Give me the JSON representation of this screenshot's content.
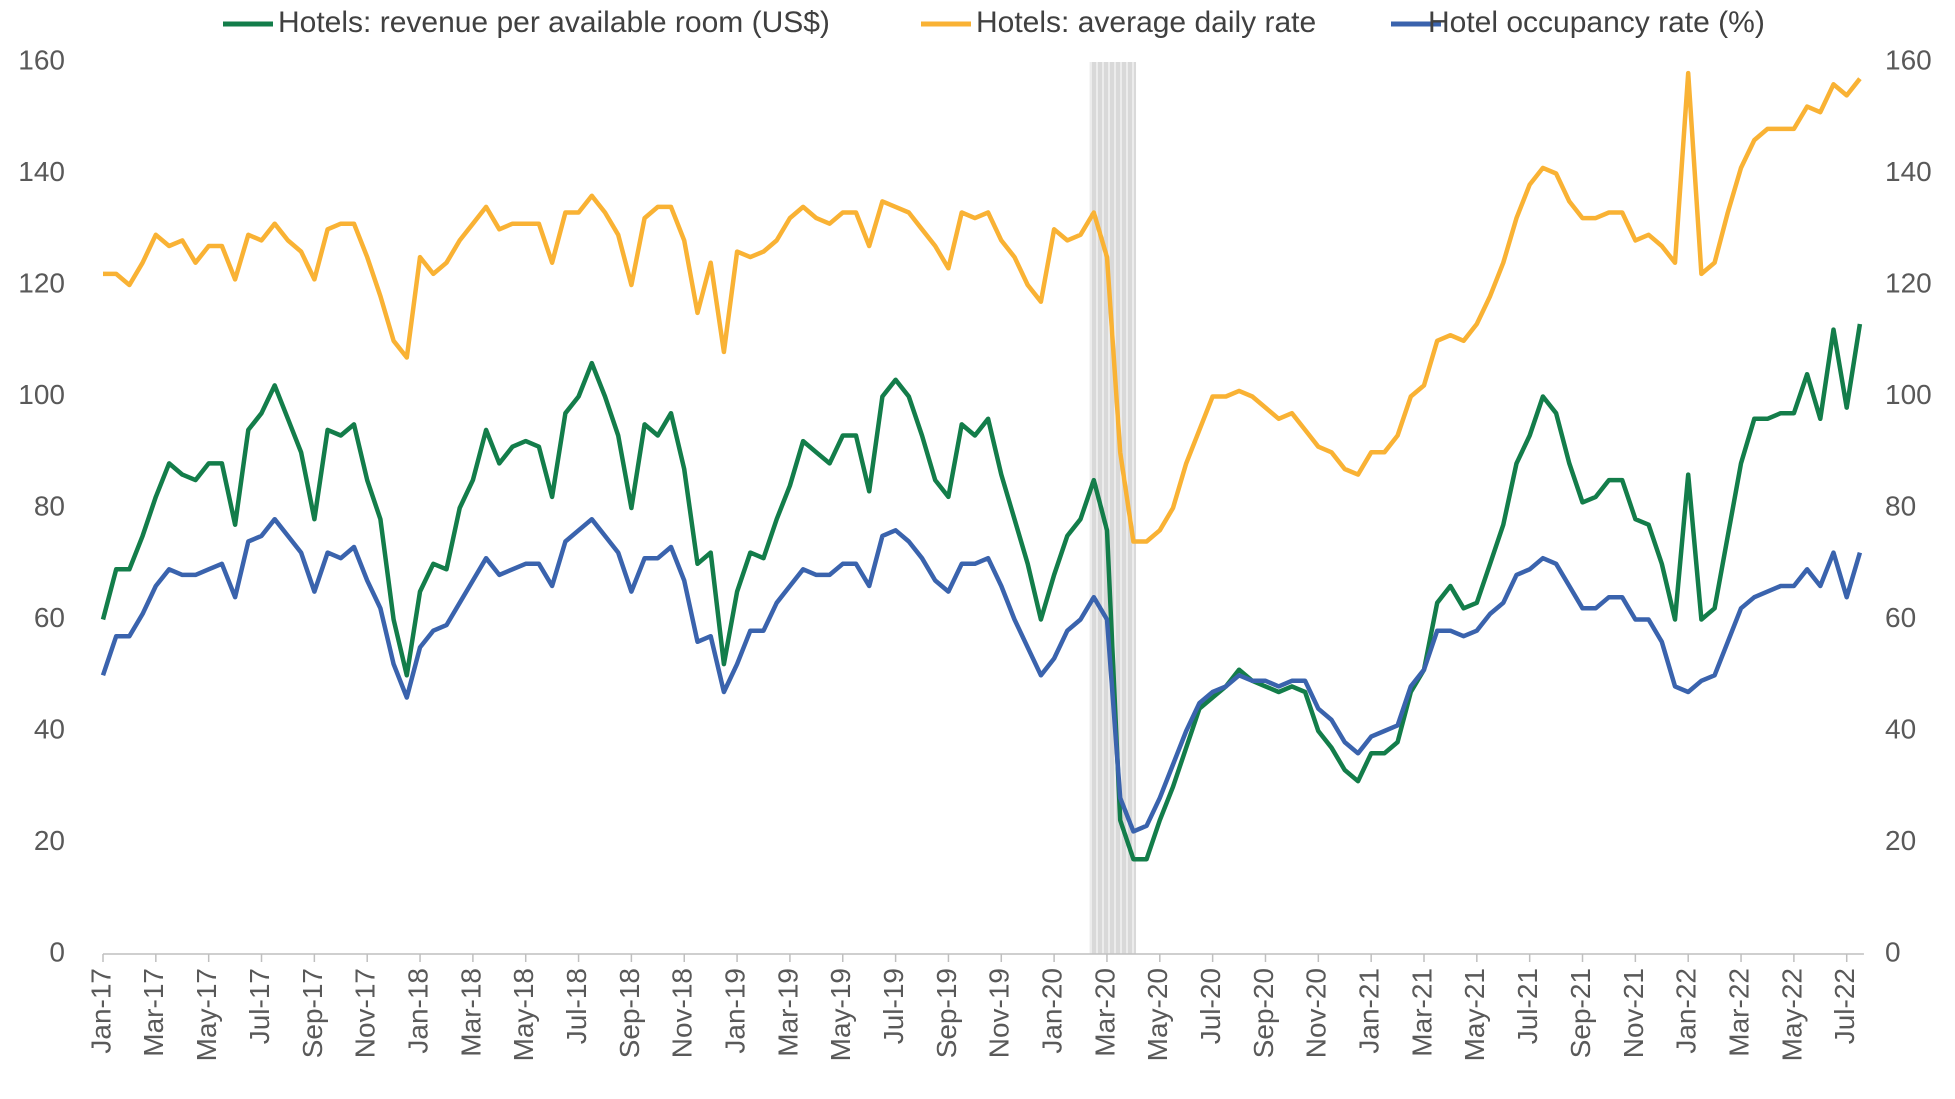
{
  "chart_data": {
    "type": "line",
    "categories": [
      "Jan-17",
      null,
      null,
      null,
      "Mar-17",
      null,
      null,
      null,
      "May-17",
      null,
      null,
      null,
      "Jul-17",
      null,
      null,
      null,
      "Sep-17",
      null,
      null,
      null,
      "Nov-17",
      null,
      null,
      null,
      "Jan-18",
      null,
      null,
      null,
      "Mar-18",
      null,
      null,
      null,
      "May-18",
      null,
      null,
      null,
      "Jul-18",
      null,
      null,
      null,
      "Sep-18",
      null,
      null,
      null,
      "Nov-18",
      null,
      null,
      null,
      "Jan-19",
      null,
      null,
      null,
      "Mar-19",
      null,
      null,
      null,
      "May-19",
      null,
      null,
      null,
      "Jul-19",
      null,
      null,
      null,
      "Sep-19",
      null,
      null,
      null,
      "Nov-19",
      null,
      null,
      null,
      "Jan-20",
      null,
      null,
      null,
      "Mar-20",
      null,
      null,
      null,
      "May-20",
      null,
      null,
      null,
      "Jul-20",
      null,
      null,
      null,
      "Sep-20",
      null,
      null,
      null,
      "Nov-20",
      null,
      null,
      null,
      "Jan-21",
      null,
      null,
      null,
      "Mar-21",
      null,
      null,
      null,
      "May-21",
      null,
      null,
      null,
      "Jul-21",
      null,
      null,
      null,
      "Sep-21",
      null,
      null,
      null,
      "Nov-21",
      null,
      null,
      null,
      "Jan-22",
      null,
      null,
      null,
      "Mar-22",
      null,
      null,
      null,
      "May-22",
      null,
      null,
      null,
      "Jul-22",
      null
    ],
    "series": [
      {
        "name": "Hotels: revenue per available room (US$)",
        "color": "#137d4a",
        "values": [
          60,
          69,
          69,
          75,
          82,
          88,
          86,
          85,
          88,
          88,
          77,
          94,
          97,
          102,
          96,
          90,
          78,
          94,
          93,
          95,
          85,
          78,
          60,
          50,
          65,
          70,
          69,
          80,
          85,
          94,
          88,
          91,
          92,
          91,
          82,
          97,
          100,
          106,
          100,
          93,
          80,
          95,
          93,
          97,
          87,
          70,
          72,
          52,
          65,
          72,
          71,
          78,
          84,
          92,
          90,
          88,
          93,
          93,
          83,
          100,
          103,
          100,
          93,
          85,
          82,
          95,
          93,
          96,
          86,
          78,
          70,
          60,
          68,
          75,
          78,
          85,
          76,
          24,
          17,
          17,
          24,
          30,
          37,
          44,
          46,
          48,
          51,
          49,
          48,
          47,
          48,
          47,
          40,
          37,
          33,
          31,
          36,
          36,
          38,
          47,
          51,
          63,
          66,
          62,
          63,
          70,
          77,
          88,
          93,
          100,
          97,
          88,
          81,
          82,
          85,
          85,
          78,
          77,
          70,
          60,
          86,
          60,
          62,
          75,
          88,
          96,
          96,
          97,
          97,
          104,
          96,
          112,
          98,
          113
        ]
      },
      {
        "name": "Hotels: average daily rate",
        "color": "#f9b234",
        "values": [
          122,
          122,
          120,
          124,
          129,
          127,
          128,
          124,
          127,
          127,
          121,
          129,
          128,
          131,
          128,
          126,
          121,
          130,
          131,
          131,
          125,
          118,
          110,
          107,
          125,
          122,
          124,
          128,
          131,
          134,
          130,
          131,
          131,
          131,
          124,
          133,
          133,
          136,
          133,
          129,
          120,
          132,
          134,
          134,
          128,
          115,
          124,
          108,
          126,
          125,
          126,
          128,
          132,
          134,
          132,
          131,
          133,
          133,
          127,
          135,
          134,
          133,
          130,
          127,
          123,
          133,
          132,
          133,
          128,
          125,
          120,
          117,
          130,
          128,
          129,
          133,
          125,
          90,
          74,
          74,
          76,
          80,
          88,
          94,
          100,
          100,
          101,
          100,
          98,
          96,
          97,
          94,
          91,
          90,
          87,
          86,
          90,
          90,
          93,
          100,
          102,
          110,
          111,
          110,
          113,
          118,
          124,
          132,
          138,
          141,
          140,
          135,
          132,
          132,
          133,
          133,
          128,
          129,
          127,
          124,
          158,
          122,
          124,
          133,
          141,
          146,
          148,
          148,
          148,
          152,
          151,
          156,
          154,
          157
        ]
      },
      {
        "name": "Hotel occupancy rate (%)",
        "color": "#3a63ad",
        "values": [
          50,
          57,
          57,
          61,
          66,
          69,
          68,
          68,
          69,
          70,
          64,
          74,
          75,
          78,
          75,
          72,
          65,
          72,
          71,
          73,
          67,
          62,
          52,
          46,
          55,
          58,
          59,
          63,
          67,
          71,
          68,
          69,
          70,
          70,
          66,
          74,
          76,
          78,
          75,
          72,
          65,
          71,
          71,
          73,
          67,
          56,
          57,
          47,
          52,
          58,
          58,
          63,
          66,
          69,
          68,
          68,
          70,
          70,
          66,
          75,
          76,
          74,
          71,
          67,
          65,
          70,
          70,
          71,
          66,
          60,
          55,
          50,
          53,
          58,
          60,
          64,
          60,
          28,
          22,
          23,
          28,
          34,
          40,
          45,
          47,
          48,
          50,
          49,
          49,
          48,
          49,
          49,
          44,
          42,
          38,
          36,
          39,
          40,
          41,
          48,
          51,
          58,
          58,
          57,
          58,
          61,
          63,
          68,
          69,
          71,
          70,
          66,
          62,
          62,
          64,
          64,
          60,
          60,
          56,
          48,
          47,
          49,
          50,
          56,
          62,
          64,
          65,
          66,
          66,
          69,
          66,
          72,
          64,
          72
        ]
      }
    ],
    "ylim": [
      0,
      160
    ],
    "yticks": [
      0,
      20,
      40,
      60,
      80,
      100,
      120,
      140,
      160
    ],
    "y2lim": [
      0,
      160
    ],
    "y2ticks": [
      0,
      20,
      40,
      60,
      80,
      100,
      120,
      140,
      160
    ],
    "shaded_range": [
      74.7,
      78.2
    ],
    "shade_color": "#d9d9d9",
    "legend": "top",
    "grid": false
  }
}
